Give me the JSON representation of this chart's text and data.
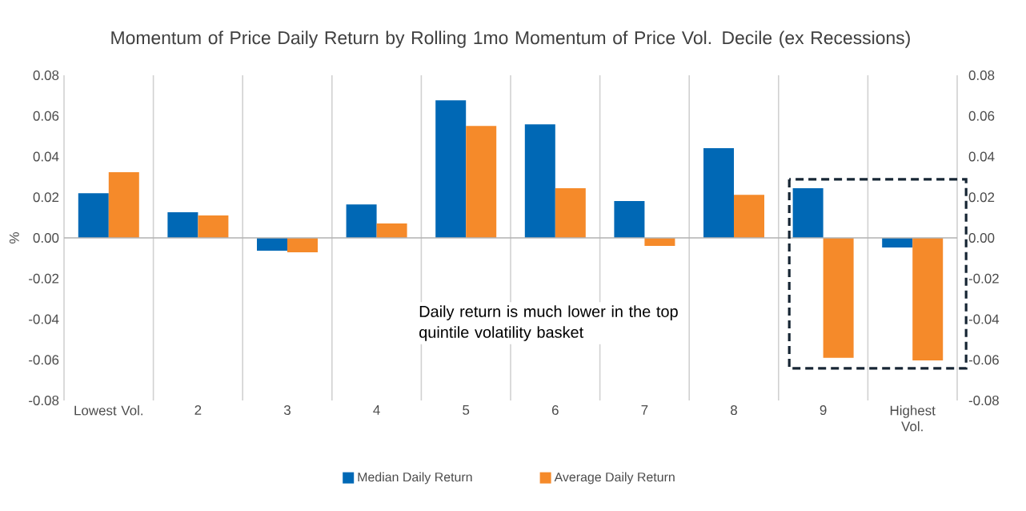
{
  "chart_data": {
    "type": "bar",
    "title": "Momentum of Price Daily Return by Rolling 1mo Momentum of Price Vol. Decile (ex Recessions)",
    "ylabel": "%",
    "categories": [
      "Lowest Vol.",
      "2",
      "3",
      "4",
      "5",
      "6",
      "7",
      "8",
      "9",
      "Highest Vol."
    ],
    "series": [
      {
        "name": "Median Daily Return",
        "color": "#0068b5",
        "values": [
          0.022,
          0.0126,
          -0.0063,
          0.0165,
          0.0677,
          0.0559,
          0.0181,
          0.0441,
          0.0244,
          -0.0047
        ]
      },
      {
        "name": "Average Daily Return",
        "color": "#f58a2a",
        "values": [
          0.0323,
          0.011,
          -0.0071,
          0.0071,
          0.0551,
          0.0244,
          -0.0039,
          0.0212,
          -0.059,
          -0.0603
        ]
      }
    ],
    "ylim": [
      -0.08,
      0.08
    ],
    "yticks": [
      -0.08,
      -0.06,
      -0.04,
      -0.02,
      {
        "value": 0,
        "label": "0.00"
      },
      0.02,
      0.04,
      0.06,
      0.08
    ],
    "y2lim": [
      -0.08,
      0.08
    ],
    "y2ticks": [
      -0.08,
      -0.06,
      -0.04,
      -0.02,
      {
        "value": 0,
        "label": "0.00"
      },
      0.02,
      0.04,
      0.06,
      0.08
    ],
    "annotations": [
      "Daily return is much lower in the top quintile volatility basket"
    ],
    "grid": "x",
    "legend": "bottom"
  }
}
